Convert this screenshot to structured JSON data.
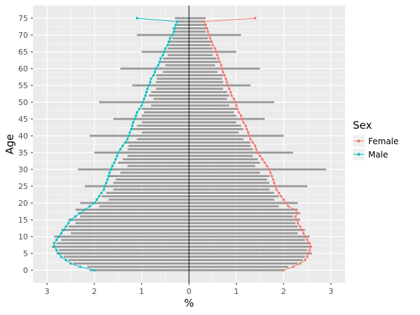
{
  "chart_data": {
    "type": "bar",
    "subtype": "population-pyramid with line overlay",
    "title": "",
    "xlabel": "%",
    "ylabel": "Age",
    "x_axis": {
      "ticks": [
        -3,
        -2,
        -1,
        0,
        1,
        2,
        3
      ],
      "tick_labels": [
        "3",
        "2",
        "1",
        "0",
        "1",
        "2",
        "3"
      ],
      "range": [
        -3,
        3
      ]
    },
    "y_axis": {
      "ticks": [
        0,
        5,
        10,
        15,
        20,
        25,
        30,
        35,
        40,
        45,
        50,
        55,
        60,
        65,
        70,
        75
      ],
      "range": [
        0,
        75
      ]
    },
    "legend": {
      "title": "Sex",
      "entries": [
        {
          "label": "Female",
          "color": "#F8766D"
        },
        {
          "label": "Male",
          "color": "#00BFC4"
        }
      ]
    },
    "colors": {
      "bar": "#999999",
      "female": "#F8766D",
      "male": "#00BFC4",
      "panel": "#EBEBEB",
      "grid": "#FFFFFF",
      "zero_line": "#000000",
      "tick_text": "#4D4D4D"
    },
    "ages": [
      0,
      1,
      2,
      3,
      4,
      5,
      6,
      7,
      8,
      9,
      10,
      11,
      12,
      13,
      14,
      15,
      16,
      17,
      18,
      19,
      20,
      21,
      22,
      23,
      24,
      25,
      26,
      27,
      28,
      29,
      30,
      31,
      32,
      33,
      34,
      35,
      36,
      37,
      38,
      39,
      40,
      41,
      42,
      43,
      44,
      45,
      46,
      47,
      48,
      49,
      50,
      51,
      52,
      53,
      54,
      55,
      56,
      57,
      58,
      59,
      60,
      61,
      62,
      63,
      64,
      65,
      66,
      67,
      68,
      69,
      70,
      71,
      72,
      73,
      74,
      75
    ],
    "bars_male": [
      2.1,
      2.15,
      2.45,
      2.55,
      2.65,
      2.8,
      2.75,
      2.9,
      2.8,
      2.7,
      2.85,
      2.5,
      2.7,
      2.55,
      2.4,
      2.55,
      2.3,
      2.35,
      2.4,
      1.9,
      2.3,
      1.7,
      1.85,
      1.75,
      1.6,
      2.2,
      1.6,
      1.55,
      1.7,
      1.45,
      2.35,
      1.3,
      1.5,
      1.4,
      1.3,
      2.0,
      1.3,
      1.28,
      1.35,
      1.1,
      2.1,
      1.0,
      1.2,
      1.1,
      1.0,
      1.6,
      1.0,
      0.95,
      1.0,
      0.8,
      1.9,
      0.75,
      0.85,
      0.8,
      0.7,
      1.2,
      0.7,
      0.68,
      0.7,
      0.55,
      1.45,
      0.5,
      0.6,
      0.55,
      0.45,
      1.0,
      0.45,
      0.42,
      0.45,
      0.35,
      1.1,
      0.3,
      0.35,
      0.3,
      0.25,
      0.3
    ],
    "bars_female": [
      2.0,
      2.1,
      2.3,
      2.4,
      2.45,
      2.6,
      2.5,
      2.6,
      2.55,
      2.45,
      2.55,
      2.3,
      2.45,
      2.3,
      2.25,
      2.35,
      2.2,
      2.35,
      2.3,
      1.9,
      2.3,
      1.8,
      1.9,
      1.8,
      1.7,
      2.5,
      1.7,
      1.65,
      1.7,
      1.5,
      2.9,
      1.4,
      1.5,
      1.45,
      1.35,
      2.2,
      1.35,
      1.3,
      1.3,
      1.15,
      2.0,
      1.05,
      1.15,
      1.1,
      1.0,
      1.6,
      1.0,
      0.95,
      1.0,
      0.85,
      1.8,
      0.8,
      0.85,
      0.8,
      0.72,
      1.3,
      0.72,
      0.7,
      0.72,
      0.6,
      1.5,
      0.55,
      0.62,
      0.58,
      0.5,
      1.0,
      0.5,
      0.45,
      0.48,
      0.4,
      1.1,
      0.35,
      0.4,
      0.35,
      0.3,
      0.35
    ],
    "line_male": [
      2.0,
      2.3,
      2.5,
      2.6,
      2.7,
      2.75,
      2.8,
      2.85,
      2.85,
      2.8,
      2.75,
      2.7,
      2.65,
      2.6,
      2.55,
      2.5,
      2.4,
      2.3,
      2.2,
      2.1,
      2.0,
      1.95,
      1.9,
      1.85,
      1.8,
      1.78,
      1.75,
      1.72,
      1.7,
      1.68,
      1.65,
      1.62,
      1.58,
      1.55,
      1.52,
      1.5,
      1.45,
      1.4,
      1.35,
      1.3,
      1.28,
      1.25,
      1.22,
      1.2,
      1.18,
      1.15,
      1.12,
      1.1,
      1.05,
      1.0,
      0.98,
      0.95,
      0.92,
      0.9,
      0.88,
      0.85,
      0.82,
      0.8,
      0.75,
      0.72,
      0.7,
      0.65,
      0.62,
      0.6,
      0.55,
      0.52,
      0.5,
      0.45,
      0.42,
      0.4,
      0.35,
      0.32,
      0.3,
      0.28,
      0.25,
      1.1
    ],
    "line_female": [
      2.0,
      2.2,
      2.35,
      2.45,
      2.5,
      2.52,
      2.55,
      2.58,
      2.55,
      2.5,
      2.45,
      2.42,
      2.38,
      2.35,
      2.3,
      2.28,
      2.25,
      2.3,
      2.25,
      2.1,
      2.05,
      2.0,
      1.95,
      1.9,
      1.85,
      1.82,
      1.8,
      1.78,
      1.75,
      1.72,
      1.7,
      1.65,
      1.6,
      1.55,
      1.5,
      1.45,
      1.42,
      1.4,
      1.35,
      1.3,
      1.28,
      1.25,
      1.22,
      1.2,
      1.15,
      1.12,
      1.1,
      1.05,
      1.02,
      1.0,
      0.98,
      0.95,
      0.9,
      0.88,
      0.85,
      0.82,
      0.8,
      0.78,
      0.75,
      0.72,
      0.7,
      0.68,
      0.65,
      0.62,
      0.6,
      0.58,
      0.55,
      0.5,
      0.48,
      0.45,
      0.42,
      0.4,
      0.38,
      0.35,
      0.32,
      1.4
    ]
  }
}
